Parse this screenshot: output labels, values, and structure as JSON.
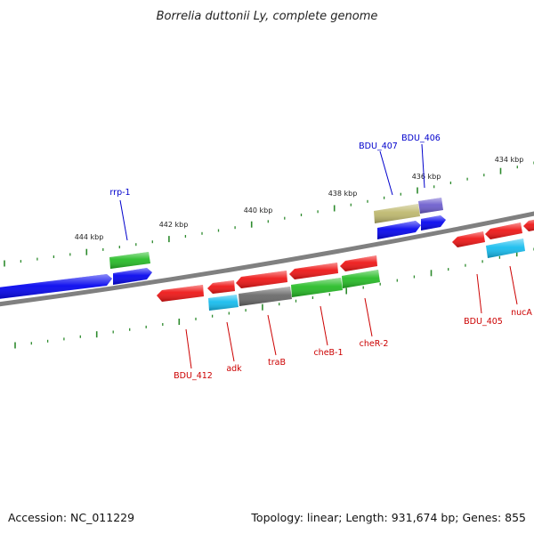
{
  "title": "Borrelia duttonii Ly, complete genome",
  "footer": {
    "accession": "Accession: NC_011229",
    "summary": "Topology: linear; Length: 931,674 bp; Genes: 855"
  },
  "colors": {
    "backbone": "#808080",
    "tick": "#2e8b2e",
    "label_top": "#0000cc",
    "label_bottom": "#cc0000",
    "blue": "#0000ee",
    "red": "#ee1111",
    "green": "#22bb22",
    "gray": "#666666",
    "cyan": "#11bbee",
    "khaki": "#bdb76b",
    "purple": "#6a5acd"
  },
  "scale_labels": [
    "434 kbp",
    "436 kbp",
    "438 kbp",
    "440 kbp",
    "442 kbp",
    "444 kbp"
  ],
  "gene_labels": {
    "top": [
      "rrp-1",
      "BDU_407",
      "BDU_406"
    ],
    "bottom": [
      "BDU_412",
      "adk",
      "traB",
      "cheB-1",
      "cheR-2",
      "BDU_405",
      "nucA"
    ]
  }
}
